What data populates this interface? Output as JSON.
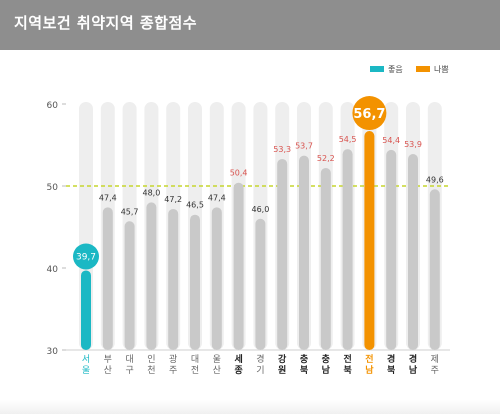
{
  "title": "지역보건 취약지역 종합점수",
  "colors": {
    "good": "#1bb8c4",
    "bad": "#f39200",
    "bar_gray": "#c9c9c9",
    "track": "#eeeeee",
    "threshold_line": "#c6d62e",
    "label_dark": "#333333",
    "label_red": "#d9534f"
  },
  "chart_data": {
    "type": "bar",
    "title": "지역보건 취약지역 종합점수",
    "ylim": [
      30,
      60
    ],
    "yticks": [
      30,
      40,
      50,
      60
    ],
    "reference_line": 50,
    "legend": {
      "placement": "top-right",
      "items": [
        {
          "label": "좋음",
          "color": "#1bb8c4"
        },
        {
          "label": "나쁨",
          "color": "#f39200"
        }
      ]
    },
    "categories": [
      {
        "label": [
          "서",
          "울"
        ],
        "value": 39.7,
        "value_label": "39,7",
        "style": "good"
      },
      {
        "label": [
          "부",
          "산"
        ],
        "value": 47.4,
        "value_label": "47,4",
        "style": "normal"
      },
      {
        "label": [
          "대",
          "구"
        ],
        "value": 45.7,
        "value_label": "45,7",
        "style": "normal"
      },
      {
        "label": [
          "인",
          "천"
        ],
        "value": 48.0,
        "value_label": "48,0",
        "style": "normal"
      },
      {
        "label": [
          "광",
          "주"
        ],
        "value": 47.2,
        "value_label": "47,2",
        "style": "normal"
      },
      {
        "label": [
          "대",
          "전"
        ],
        "value": 46.5,
        "value_label": "46,5",
        "style": "normal"
      },
      {
        "label": [
          "울",
          "산"
        ],
        "value": 47.4,
        "value_label": "47,4",
        "style": "normal"
      },
      {
        "label": [
          "세",
          "종"
        ],
        "value": 50.4,
        "value_label": "50,4",
        "style": "above"
      },
      {
        "label": [
          "경",
          "기"
        ],
        "value": 46.0,
        "value_label": "46,0",
        "style": "normal"
      },
      {
        "label": [
          "강",
          "원"
        ],
        "value": 53.3,
        "value_label": "53,3",
        "style": "above"
      },
      {
        "label": [
          "충",
          "북"
        ],
        "value": 53.7,
        "value_label": "53,7",
        "style": "above"
      },
      {
        "label": [
          "충",
          "남"
        ],
        "value": 52.2,
        "value_label": "52,2",
        "style": "above"
      },
      {
        "label": [
          "전",
          "북"
        ],
        "value": 54.5,
        "value_label": "54,5",
        "style": "above"
      },
      {
        "label": [
          "전",
          "남"
        ],
        "value": 56.7,
        "value_label": "56,7",
        "style": "bad"
      },
      {
        "label": [
          "경",
          "북"
        ],
        "value": 54.4,
        "value_label": "54,4",
        "style": "above"
      },
      {
        "label": [
          "경",
          "남"
        ],
        "value": 53.9,
        "value_label": "53,9",
        "style": "above"
      },
      {
        "label": [
          "제",
          "주"
        ],
        "value": 49.6,
        "value_label": "49,6",
        "style": "normal"
      }
    ]
  }
}
